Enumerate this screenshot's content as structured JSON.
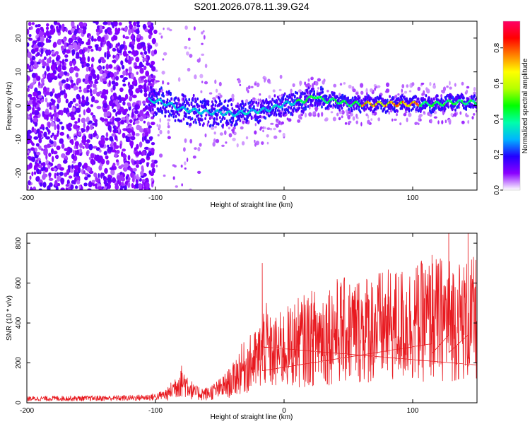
{
  "figure": {
    "title": "S201.2026.078.11.39.G24"
  },
  "chart_data": [
    {
      "type": "heatmap",
      "title": "S201.2026.078.11.39.G24",
      "xlabel": "Height of straight line (km)",
      "ylabel": "Frequency (Hz)",
      "xlim": [
        -200,
        150
      ],
      "ylim": [
        -25,
        25
      ],
      "x_ticks": [
        -200,
        -100,
        0,
        100
      ],
      "y_ticks": [
        -20,
        -10,
        0,
        10,
        20
      ],
      "ridge": {
        "x": [
          -100,
          -90,
          -80,
          -70,
          -60,
          -50,
          -40,
          -30,
          -20,
          -10,
          0,
          10,
          20,
          25,
          30,
          40,
          50,
          60,
          70,
          80,
          90,
          100,
          110,
          120,
          130,
          140,
          150
        ],
        "freq": [
          1.5,
          0.5,
          -1.0,
          -1.5,
          -2.0,
          -2.0,
          -2.5,
          -2.0,
          -1.5,
          -1.0,
          0.5,
          1.0,
          2.0,
          3.0,
          1.5,
          1.5,
          0.5,
          0.5,
          0.5,
          0.5,
          0.5,
          0.5,
          0.5,
          0.5,
          1.0,
          1.0,
          1.0
        ]
      },
      "colorbar": {
        "label": "Normalized spectral amplitude",
        "ticks": [
          0.0,
          0.2,
          0.4,
          0.6,
          0.8
        ],
        "range": [
          0,
          0.95
        ],
        "colormap": [
          "#ffffff",
          "#8a00ff",
          "#2200ff",
          "#00b4ff",
          "#00ffaa",
          "#00ff00",
          "#b4ff00",
          "#ffff00",
          "#ff8000",
          "#ff0000",
          "#ff0066"
        ]
      },
      "grid": false
    },
    {
      "type": "line",
      "xlabel": "Height of straight line (km)",
      "ylabel": "SNR (10 * v/v)",
      "xlim": [
        -200,
        150
      ],
      "ylim": [
        0,
        850
      ],
      "x_ticks": [
        -200,
        -100,
        0,
        100
      ],
      "y_ticks": [
        0,
        200,
        400,
        600,
        800
      ],
      "color": "#e8191f",
      "series": [
        {
          "x": [
            -200,
            -180,
            -160,
            -140,
            -120,
            -110,
            -100,
            -90,
            -85,
            -80,
            -75,
            -70,
            -60,
            -50,
            -40,
            -35,
            -30,
            -20,
            -15,
            -10,
            0,
            10,
            20,
            30,
            40,
            50,
            60,
            70,
            80,
            90,
            100,
            110,
            120,
            130,
            140,
            150
          ],
          "y": [
            20,
            22,
            22,
            23,
            24,
            26,
            30,
            45,
            80,
            110,
            90,
            50,
            45,
            70,
            110,
            160,
            180,
            220,
            300,
            240,
            270,
            300,
            320,
            340,
            360,
            360,
            370,
            380,
            380,
            390,
            400,
            410,
            420,
            420,
            410,
            420
          ],
          "peaks": [
            {
              "x": -17,
              "y": 700
            },
            {
              "x": 115,
              "y": 740
            },
            {
              "x": 128,
              "y": 850
            },
            {
              "x": 143,
              "y": 850
            }
          ]
        }
      ]
    }
  ]
}
